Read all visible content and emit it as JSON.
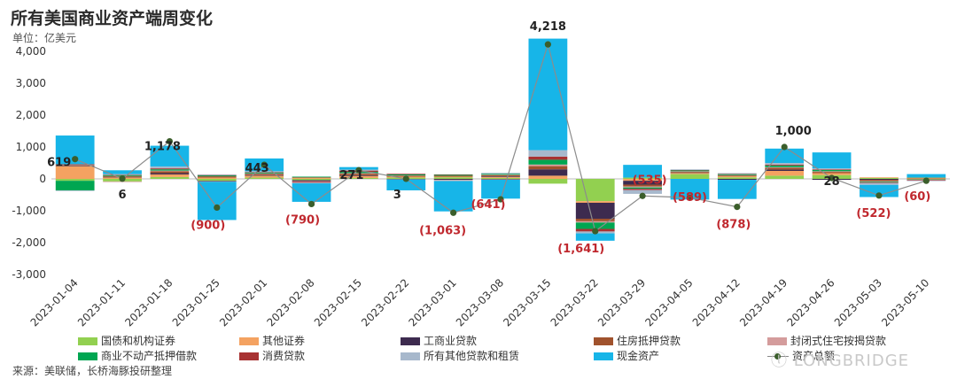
{
  "page": {
    "title": "所有美国商业资产端周变化",
    "unit": "单位：亿美元",
    "source": "来源：美联储，长桥海豚投研整理",
    "watermark": "长桥海豚投研 LONGBRIDGE DolphinResearch"
  },
  "chart_data": {
    "type": "bar",
    "stacked": true,
    "title": "所有美国商业资产端周变化",
    "ylabel": "单位：亿美元",
    "ylim": [
      -3000,
      4000
    ],
    "yticks": [
      -3000,
      -2000,
      -1000,
      0,
      1000,
      2000,
      3000,
      4000
    ],
    "ytick_labels": [
      "-3,000",
      "-2,000",
      "-1,000",
      "0",
      "1,000",
      "2,000",
      "3,000",
      "4,000"
    ],
    "grid": false,
    "legend_position": "bottom",
    "categories": [
      "2023-01-04",
      "2023-01-11",
      "2023-01-18",
      "2023-01-25",
      "2023-02-01",
      "2023-02-08",
      "2023-02-15",
      "2023-02-22",
      "2023-03-01",
      "2023-03-08",
      "2023-03-15",
      "2023-03-22",
      "2023-03-29",
      "2023-04-05",
      "2023-04-12",
      "2023-04-19",
      "2023-04-26",
      "2023-05-03",
      "2023-05-10"
    ],
    "series": [
      {
        "name": "国债和机构证券",
        "color": "#92d050",
        "values": [
          -60,
          -80,
          60,
          -60,
          40,
          -40,
          30,
          40,
          50,
          30,
          -150,
          -700,
          40,
          150,
          50,
          100,
          120,
          30,
          -20
        ]
      },
      {
        "name": "其他证券",
        "color": "#f4a261",
        "values": [
          400,
          50,
          80,
          40,
          60,
          30,
          60,
          30,
          20,
          30,
          100,
          -50,
          -60,
          40,
          30,
          150,
          60,
          20,
          20
        ]
      },
      {
        "name": "工商业贷款",
        "color": "#3d2b4f",
        "values": [
          20,
          10,
          40,
          -20,
          20,
          -30,
          20,
          -10,
          -30,
          20,
          200,
          -500,
          -120,
          10,
          -30,
          40,
          -30,
          -30,
          -10
        ]
      },
      {
        "name": "住房抵押贷款",
        "color": "#a0522d",
        "values": [
          20,
          30,
          60,
          40,
          40,
          20,
          50,
          30,
          30,
          40,
          100,
          -80,
          -60,
          30,
          30,
          60,
          40,
          -40,
          10
        ]
      },
      {
        "name": "封闭式住宅按揭贷款",
        "color": "#d49c9c",
        "values": [
          10,
          -20,
          20,
          -10,
          10,
          -20,
          20,
          10,
          -20,
          10,
          50,
          -40,
          -30,
          10,
          10,
          20,
          20,
          -20,
          10
        ]
      },
      {
        "name": "商业不动产抵押借款",
        "color": "#00a651",
        "values": [
          -300,
          30,
          40,
          30,
          30,
          20,
          40,
          30,
          30,
          30,
          150,
          -200,
          -40,
          30,
          30,
          50,
          40,
          -20,
          10
        ]
      },
      {
        "name": "消费贷款",
        "color": "#a83232",
        "values": [
          10,
          10,
          30,
          10,
          10,
          -30,
          40,
          20,
          10,
          -20,
          100,
          -80,
          -40,
          10,
          10,
          30,
          20,
          -20,
          -20
        ]
      },
      {
        "name": "所有其他贷款和租赁",
        "color": "#a7b8cc",
        "values": [
          -20,
          20,
          60,
          20,
          30,
          -20,
          30,
          -10,
          -20,
          30,
          200,
          -60,
          -120,
          20,
          20,
          50,
          30,
          -60,
          -20
        ]
      },
      {
        "name": "现金资产",
        "color": "#17b5e8",
        "values": [
          900,
          120,
          650,
          -1200,
          400,
          -580,
          80,
          -340,
          -950,
          -600,
          3500,
          -230,
          400,
          -650,
          -600,
          450,
          500,
          -380,
          100
        ]
      }
    ],
    "line": {
      "name": "资产总额",
      "color": "#3b5e2b",
      "values": [
        619,
        6,
        1178,
        -900,
        443,
        -790,
        271,
        3,
        -1063,
        -641,
        4218,
        -1641,
        -535,
        -589,
        -878,
        1000,
        28,
        -522,
        -60
      ]
    },
    "data_labels": [
      "619",
      "6",
      "1,178",
      "(900)",
      "443",
      "(790)",
      "271",
      "3",
      "(1,063)",
      "(641)",
      "4,218",
      "(1,641)",
      "(535)",
      "(589)",
      "(878)",
      "1,000",
      "28",
      "(522)",
      "(60)"
    ]
  }
}
